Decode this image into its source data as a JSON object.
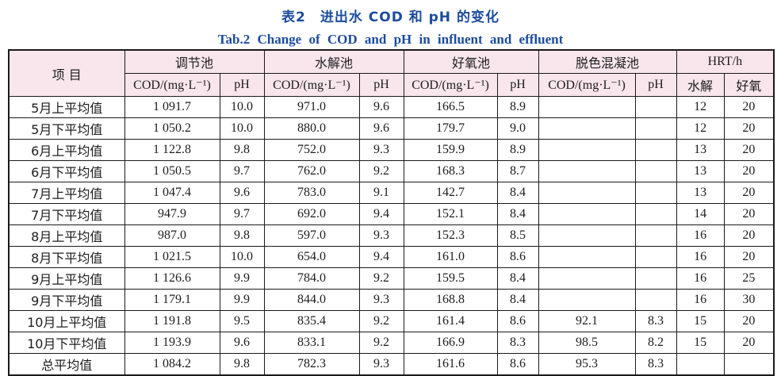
{
  "page": {
    "title_zh": "表2　进出水 COD 和 pH 的变化",
    "title_en": "Tab.2   Change of COD and pH in influent and effluent"
  },
  "colors": {
    "title_blue": "#1b4c9e",
    "header_pink": "#f8e6ec",
    "border": "#1a1a1a",
    "text": "#1d1d1f"
  },
  "table": {
    "item_header": "项  目",
    "groups": [
      {
        "label": "调节池"
      },
      {
        "label": "水解池"
      },
      {
        "label": "好氧池"
      },
      {
        "label": "脱色混凝池"
      },
      {
        "label": "HRT/h"
      }
    ],
    "subheaders": {
      "cod": "COD/(mg·L⁻¹)",
      "ph": "pH",
      "hrt_hydrolysis": "水解",
      "hrt_aerobic": "好氧"
    },
    "rows": [
      [
        "5月上平均值",
        "1 091.7",
        "10.0",
        "971.0",
        "9.6",
        "166.5",
        "8.9",
        "",
        "",
        "12",
        "20"
      ],
      [
        "5月下平均值",
        "1 050.2",
        "10.0",
        "880.0",
        "9.6",
        "179.7",
        "9.0",
        "",
        "",
        "12",
        "20"
      ],
      [
        "6月上平均值",
        "1 122.8",
        "9.8",
        "752.0",
        "9.3",
        "159.9",
        "8.9",
        "",
        "",
        "13",
        "20"
      ],
      [
        "6月下平均值",
        "1 050.5",
        "9.7",
        "762.0",
        "9.2",
        "168.3",
        "8.7",
        "",
        "",
        "13",
        "20"
      ],
      [
        "7月上平均值",
        "1 047.4",
        "9.6",
        "783.0",
        "9.1",
        "142.7",
        "8.4",
        "",
        "",
        "13",
        "20"
      ],
      [
        "7月下平均值",
        "947.9",
        "9.7",
        "692.0",
        "9.4",
        "152.1",
        "8.4",
        "",
        "",
        "14",
        "20"
      ],
      [
        "8月上平均值",
        "987.0",
        "9.8",
        "597.0",
        "9.3",
        "152.3",
        "8.5",
        "",
        "",
        "16",
        "20"
      ],
      [
        "8月下平均值",
        "1 021.5",
        "10.0",
        "654.0",
        "9.4",
        "161.0",
        "8.6",
        "",
        "",
        "16",
        "20"
      ],
      [
        "9月上平均值",
        "1 126.6",
        "9.9",
        "784.0",
        "9.2",
        "159.5",
        "8.4",
        "",
        "",
        "16",
        "25"
      ],
      [
        "9月下平均值",
        "1 179.1",
        "9.9",
        "844.0",
        "9.3",
        "168.8",
        "8.4",
        "",
        "",
        "16",
        "30"
      ],
      [
        "10月上平均值",
        "1 191.8",
        "9.5",
        "835.4",
        "9.2",
        "161.4",
        "8.6",
        "92.1",
        "8.3",
        "15",
        "20"
      ],
      [
        "10月下平均值",
        "1 193.9",
        "9.6",
        "833.1",
        "9.2",
        "166.9",
        "8.3",
        "98.5",
        "8.2",
        "15",
        "20"
      ],
      [
        "总平均值",
        "1 084.2",
        "9.8",
        "782.3",
        "9.3",
        "161.6",
        "8.6",
        "95.3",
        "8.3",
        "",
        ""
      ]
    ]
  }
}
